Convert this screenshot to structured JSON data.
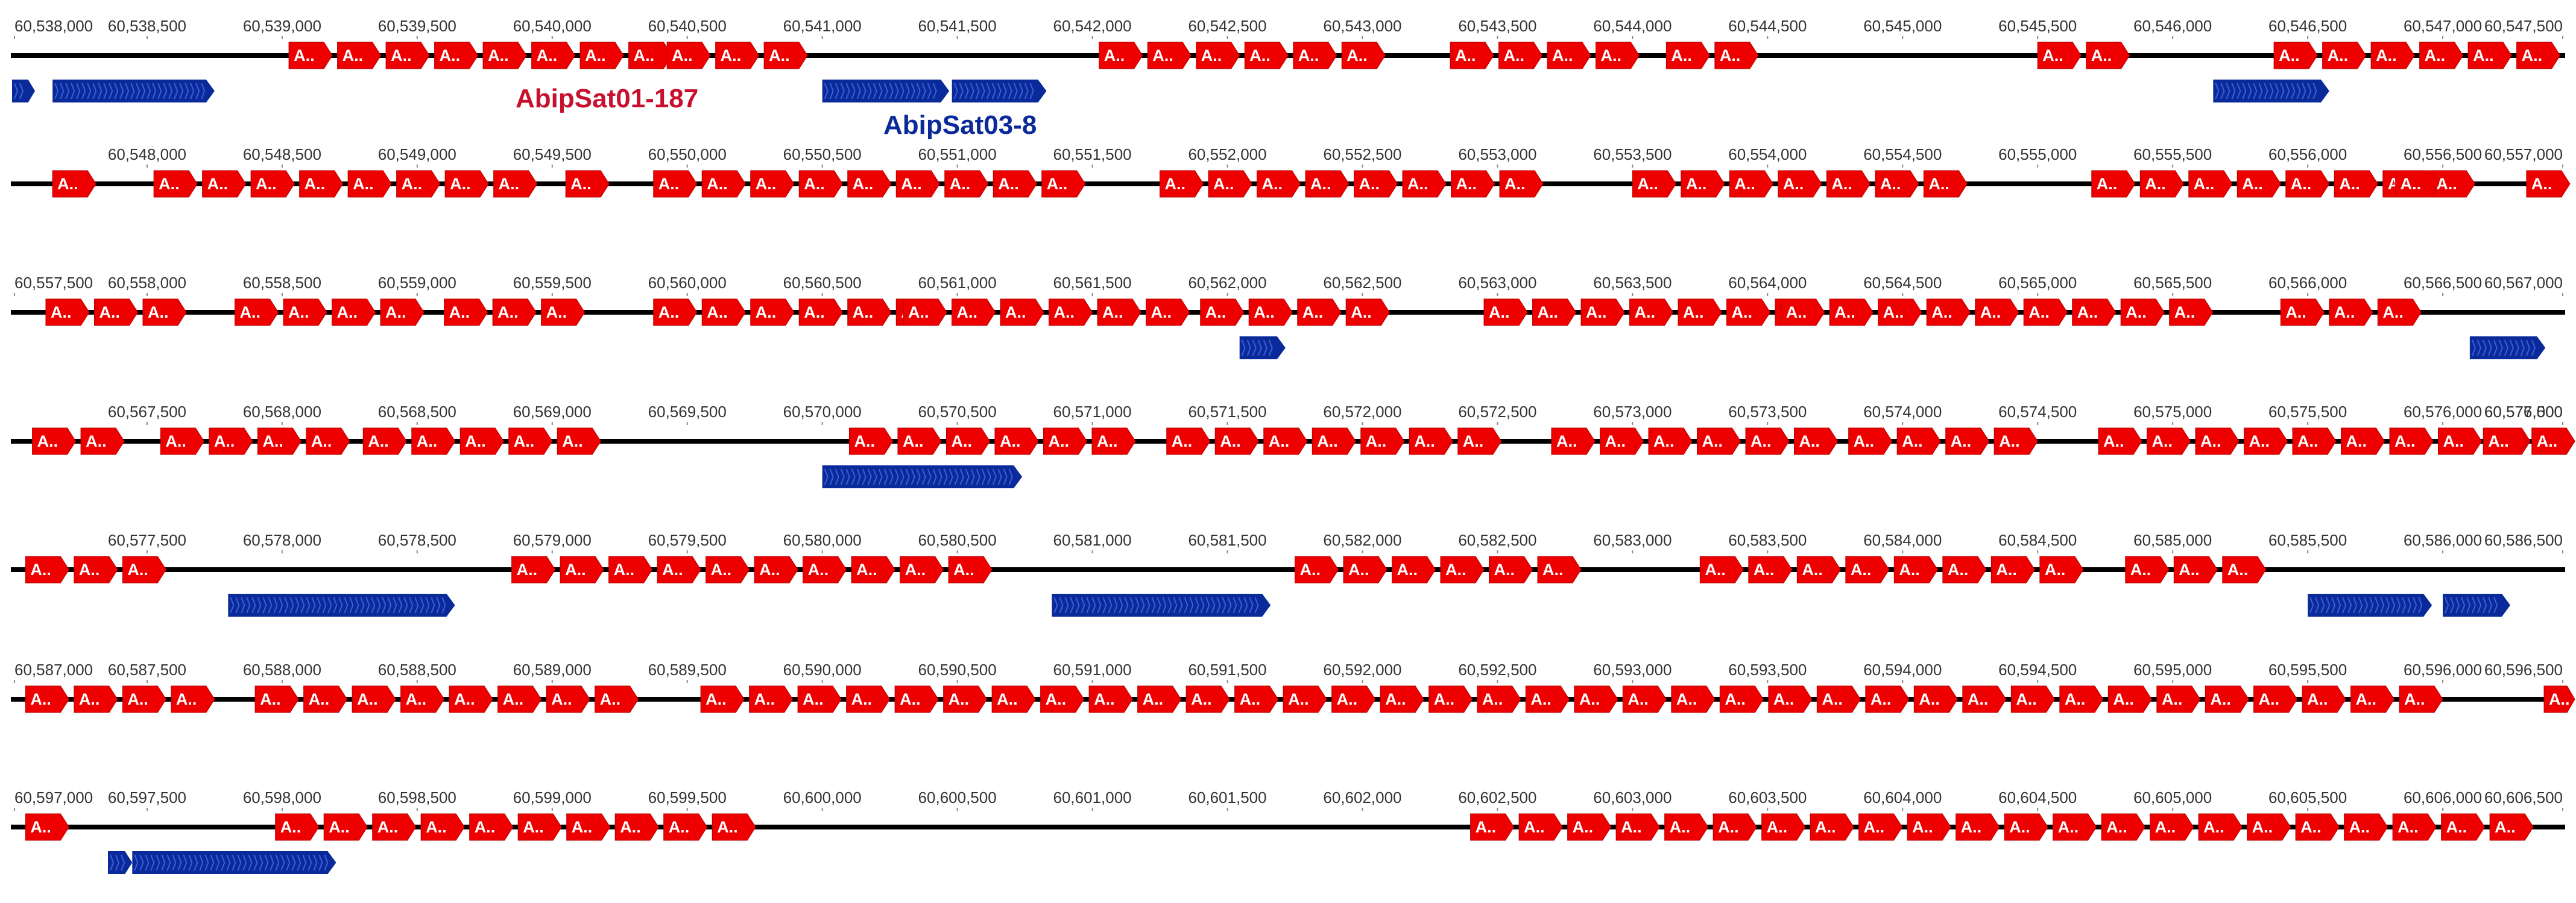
{
  "legend": {
    "red_label": "AbipSat01-187",
    "blue_label": "AbipSat03-8"
  },
  "colors": {
    "red": "#ee0000",
    "blue": "#0a2a9a",
    "backbone": "#000000",
    "text": "#333333"
  },
  "track": {
    "bp_per_row": 9500,
    "red_repeat_label": "A.."
  },
  "rows": [
    {
      "start": 60538000,
      "ticks": [
        "60,538,000",
        "60,538,500",
        "60,539,000",
        "60,539,500",
        "60,540,000",
        "60,540,500",
        "60,541,000",
        "60,541,500",
        "60,542,000",
        "60,542,500",
        "60,543,000",
        "60,543,500",
        "60,544,000",
        "60,544,500",
        "60,545,000",
        "60,545,500",
        "60,546,000",
        "60,546,500",
        "60,547,000",
        "60,547,500"
      ],
      "red": [
        [
          60539025,
          8
        ],
        [
          60540425,
          3
        ],
        [
          60542025,
          6
        ],
        [
          60543325,
          4
        ],
        [
          60544125,
          2
        ],
        [
          60545500,
          2
        ],
        [
          60546375,
          6
        ]
      ],
      "blue": [
        [
          60537950,
          60538085
        ],
        [
          60538150,
          60538750
        ],
        [
          60541000,
          60541470
        ],
        [
          60541480,
          60541830
        ],
        [
          60546150,
          60546580
        ]
      ]
    },
    {
      "start": 60547500,
      "ticks": [
        "60,548,000",
        "60,548,500",
        "60,549,000",
        "60,549,500",
        "60,550,000",
        "60,550,500",
        "60,551,000",
        "60,551,500",
        "60,552,000",
        "60,552,500",
        "60,553,000",
        "60,553,500",
        "60,554,000",
        "60,554,500",
        "60,555,000",
        "60,555,500",
        "60,556,000",
        "60,556,500",
        "60,557,000"
      ],
      "red": [
        [
          60547650,
          1
        ],
        [
          60548025,
          8
        ],
        [
          60549550,
          1
        ],
        [
          60549875,
          9
        ],
        [
          60551750,
          8
        ],
        [
          60553500,
          7
        ],
        [
          60555200,
          8
        ],
        [
          60556325,
          1
        ],
        [
          60556810,
          3
        ]
      ],
      "blue": []
    },
    {
      "start": 60557500,
      "ticks": [
        "60,557,500",
        "60,558,000",
        "60,558,500",
        "60,559,000",
        "60,559,500",
        "60,560,000",
        "60,560,500",
        "60,561,000",
        "60,561,500",
        "60,562,000",
        "60,562,500",
        "60,563,000",
        "60,563,500",
        "60,564,000",
        "60,564,500",
        "60,565,000",
        "60,565,500",
        "60,566,000",
        "60,566,500",
        "60,567,000"
      ],
      "red": [
        [
          60557625,
          3
        ],
        [
          60558325,
          4
        ],
        [
          60559100,
          3
        ],
        [
          60559875,
          6
        ],
        [
          60560800,
          6
        ],
        [
          60561900,
          4
        ],
        [
          60562950,
          7
        ],
        [
          60564050,
          9
        ],
        [
          60565900,
          3
        ]
      ],
      "blue": [
        [
          60562045,
          60562215
        ],
        [
          60566600,
          60566880
        ]
      ]
    },
    {
      "start": 60567000,
      "ticks": [
        "60,567,500",
        "60,568,000",
        "60,568,500",
        "60,569,000",
        "60,569,500",
        "60,570,000",
        "60,570,500",
        "60,571,000",
        "60,571,500",
        "60,572,000",
        "60,572,500",
        "60,573,000",
        "60,573,500",
        "60,574,000",
        "60,574,500",
        "60,575,000",
        "60,575,500",
        "60,576,000",
        "60,576,500",
        "60,577,000"
      ],
      "red": [
        [
          60567075,
          2
        ],
        [
          60567550,
          4
        ],
        [
          60568300,
          5
        ],
        [
          60570100,
          6
        ],
        [
          60571275,
          7
        ],
        [
          60572700,
          6
        ],
        [
          60573800,
          4
        ],
        [
          60574725,
          10
        ],
        [
          60576150,
          4
        ]
      ],
      "blue": [
        [
          60570000,
          60570740
        ]
      ]
    },
    {
      "start": 60577000,
      "ticks": [
        "60,577,500",
        "60,578,000",
        "60,578,500",
        "60,579,000",
        "60,579,500",
        "60,580,000",
        "60,580,500",
        "60,581,000",
        "60,581,500",
        "60,582,000",
        "60,582,500",
        "60,583,000",
        "60,583,500",
        "60,584,000",
        "60,584,500",
        "60,585,000",
        "60,585,500",
        "60,586,000",
        "60,586,500"
      ],
      "red": [
        [
          60577050,
          3
        ],
        [
          60578850,
          10
        ],
        [
          60581750,
          6
        ],
        [
          60583250,
          8
        ],
        [
          60584825,
          3
        ],
        [
          60586550,
          2
        ]
      ],
      "blue": [
        [
          60577800,
          60578640
        ],
        [
          60580850,
          60581660
        ],
        [
          60585500,
          60585960
        ],
        [
          60586000,
          60586250
        ]
      ]
    },
    {
      "start": 60587000,
      "ticks": [
        "60,587,000",
        "60,587,500",
        "60,588,000",
        "60,588,500",
        "60,589,000",
        "60,589,500",
        "60,590,000",
        "60,590,500",
        "60,591,000",
        "60,591,500",
        "60,592,000",
        "60,592,500",
        "60,593,000",
        "60,593,500",
        "60,594,000",
        "60,594,500",
        "60,595,000",
        "60,595,500",
        "60,596,000",
        "60,596,500"
      ],
      "red": [
        [
          60587050,
          4
        ],
        [
          60587900,
          8
        ],
        [
          60589550,
          16
        ],
        [
          60592425,
          16
        ],
        [
          60595300,
          4
        ],
        [
          60596375,
          1
        ]
      ],
      "blue": []
    },
    {
      "start": 60597000,
      "ticks": [
        "60,597,000",
        "60,597,500",
        "60,598,000",
        "60,598,500",
        "60,599,000",
        "60,599,500",
        "60,600,000",
        "60,600,500",
        "60,601,000",
        "60,601,500",
        "60,602,000",
        "60,602,500",
        "60,603,000",
        "60,603,500",
        "60,604,000",
        "60,604,500",
        "60,605,000",
        "60,605,500",
        "60,606,000",
        "60,606,500"
      ],
      "red": [
        [
          60597050,
          1
        ],
        [
          60597975,
          10
        ],
        [
          60602400,
          22
        ]
      ],
      "blue": [
        [
          60597355,
          60597445
        ],
        [
          60597445,
          60598200
        ]
      ]
    }
  ]
}
